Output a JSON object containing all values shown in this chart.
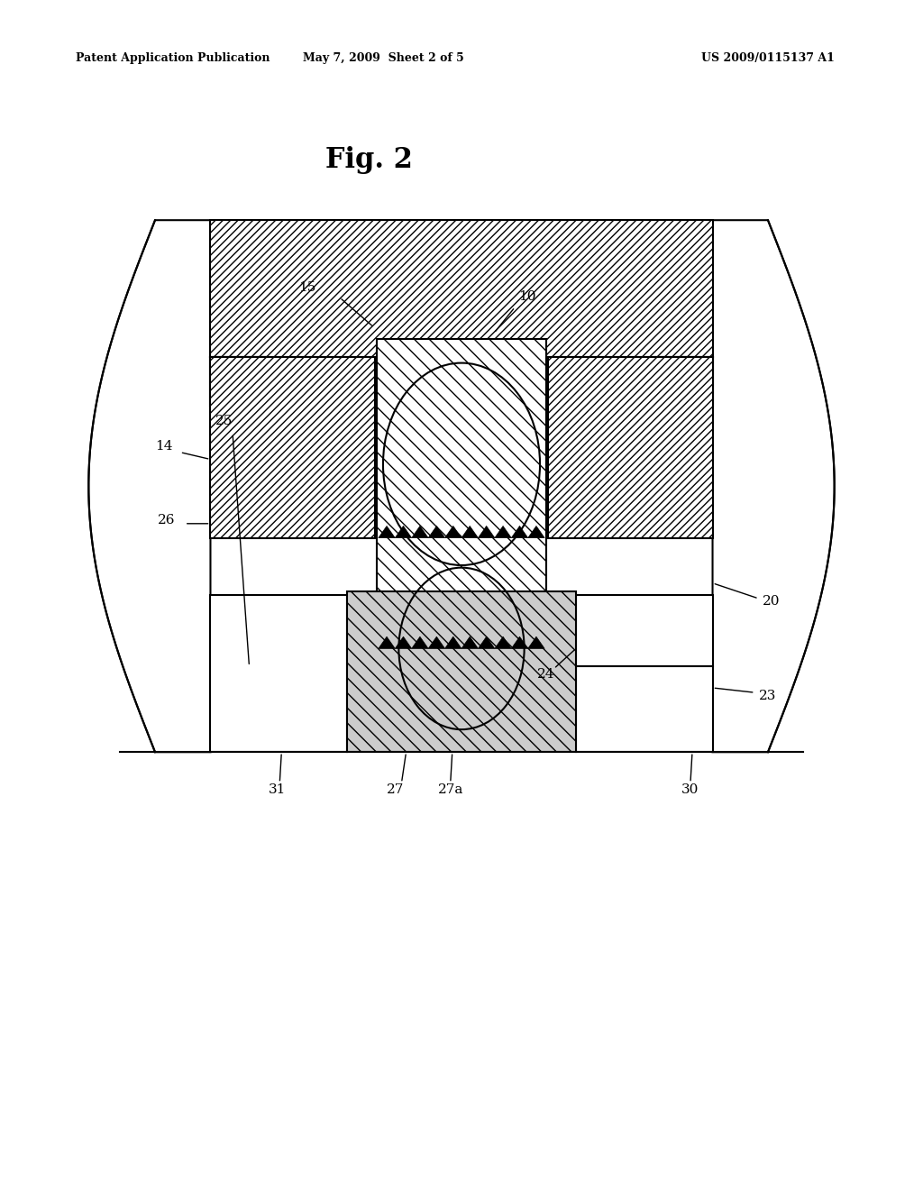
{
  "title": "Fig. 2",
  "header_left": "Patent Application Publication",
  "header_mid": "May 7, 2009  Sheet 2 of 5",
  "header_right": "US 2009/0115137 A1",
  "bg_color": "#ffffff",
  "LW": 1.5,
  "label_fs": 11,
  "title_fs": 22,
  "header_fs": 9
}
